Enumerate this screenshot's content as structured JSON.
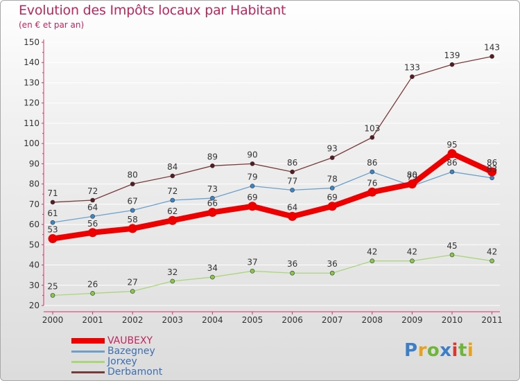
{
  "title": "Evolution des Impôts locaux par Habitant",
  "subtitle": "(en € et par an)",
  "logo": {
    "text": "Proxiti",
    "letters": [
      {
        "ch": "P",
        "color": "#3d7fc7"
      },
      {
        "ch": "r",
        "color": "#e6a21f"
      },
      {
        "ch": "o",
        "color": "#6fb53a"
      },
      {
        "ch": "x",
        "color": "#3d7fc7"
      },
      {
        "ch": "i",
        "color": "#d43a2f"
      },
      {
        "ch": "t",
        "color": "#6fb53a"
      },
      {
        "ch": "i",
        "color": "#e6a21f"
      }
    ]
  },
  "chart_data": {
    "type": "line",
    "title": "Evolution des Impôts locaux par Habitant",
    "subtitle": "(en € et par an)",
    "xlabel": "",
    "ylabel": "",
    "ylim": [
      20,
      150
    ],
    "yticks": [
      20,
      30,
      40,
      50,
      60,
      70,
      80,
      90,
      100,
      110,
      120,
      130,
      140,
      150
    ],
    "categories": [
      "2000",
      "2001",
      "2002",
      "2003",
      "2004",
      "2005",
      "2006",
      "2007",
      "2008",
      "2009",
      "2010",
      "2011"
    ],
    "legend_position": "bottom-left",
    "series": [
      {
        "name": "VAUBEXY",
        "color": "#ee0000",
        "point_color": "#ee0000",
        "values": [
          53,
          56,
          58,
          62,
          66,
          69,
          64,
          69,
          76,
          80,
          95,
          86
        ],
        "labels": [
          "53",
          "56",
          "58",
          "62",
          "66",
          "69",
          "64",
          "69",
          "76",
          "80",
          "95",
          "86"
        ]
      },
      {
        "name": "Bazegney",
        "color": "#6aa0cc",
        "point_color": "#3b86c6",
        "values": [
          61,
          64,
          67,
          72,
          73,
          79,
          77,
          78,
          86,
          79,
          86,
          83
        ],
        "labels": [
          "61",
          "64",
          "67",
          "72",
          "73",
          "79",
          "77",
          "78",
          "86",
          "79",
          "86",
          "83"
        ]
      },
      {
        "name": "Jorxey",
        "color": "#a9d67a",
        "point_color": "#86c94a",
        "values": [
          25,
          26,
          27,
          32,
          34,
          37,
          36,
          36,
          42,
          42,
          45,
          42
        ],
        "labels": [
          "25",
          "26",
          "27",
          "32",
          "34",
          "37",
          "36",
          "36",
          "42",
          "42",
          "45",
          "42"
        ]
      },
      {
        "name": "Derbamont",
        "color": "#7a3a3a",
        "point_color": "#5a1a22",
        "values": [
          71,
          72,
          80,
          84,
          89,
          90,
          86,
          93,
          103,
          133,
          139,
          143
        ],
        "labels": [
          "71",
          "72",
          "80",
          "84",
          "89",
          "90",
          "86",
          "93",
          "103",
          "133",
          "139",
          "143"
        ]
      }
    ]
  },
  "legend": {
    "items": [
      {
        "label": "VAUBEXY",
        "color": "#ee0000",
        "text_color": "#c0245c"
      },
      {
        "label": "Bazegney",
        "color": "#6aa0cc",
        "text_color": "#3b6fb0"
      },
      {
        "label": "Jorxey",
        "color": "#a9d67a",
        "text_color": "#3b6fb0"
      },
      {
        "label": "Derbamont",
        "color": "#7a3a3a",
        "text_color": "#3b6fb0"
      }
    ]
  }
}
